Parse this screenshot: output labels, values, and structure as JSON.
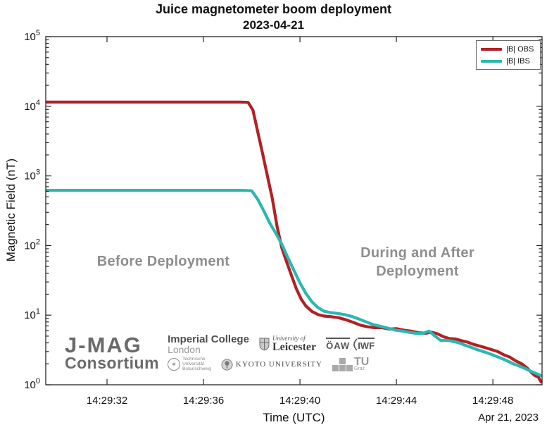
{
  "title": {
    "line1": "Juice magnetometer boom deployment",
    "line2": "2023-04-21"
  },
  "axes": {
    "ylabel": "Magnetic Field (nT)",
    "xlabel": "Time (UTC)",
    "date_label": "Apr 21, 2023"
  },
  "legend": [
    {
      "label": "|B| OBS",
      "color": "#b22025"
    },
    {
      "label": "|B| IBS",
      "color": "#2ab8b0"
    }
  ],
  "annotations": {
    "before": "Before Deployment",
    "during_line1": "During and After",
    "during_line2": "Deployment"
  },
  "logos": {
    "jmag_line1": "J-MAG",
    "jmag_line2": "Consortium",
    "imperial_line1": "Imperial College",
    "imperial_line2": "London",
    "leicester_line1": "University of",
    "leicester_line2": "Leicester",
    "oaw": "ÖAW",
    "iwf": "IWF",
    "tubs_line1": "Technische",
    "tubs_line2": "Universität",
    "tubs_line3": "Braunschweig",
    "kyoto": "KYOTO UNIVERSITY",
    "tugraz_line1": "TU",
    "tugraz_line2": "Graz"
  },
  "chart_data": {
    "type": "line",
    "title": "Juice magnetometer boom deployment",
    "subtitle": "2023-04-21",
    "xlabel": "Time (UTC)",
    "ylabel": "Magnetic Field (nT)",
    "x_unit": "seconds after 14:29:00 UTC",
    "x_range": [
      29.46,
      50.04
    ],
    "x_ticks": [
      {
        "t": 32,
        "label": "14:29:32"
      },
      {
        "t": 36,
        "label": "14:29:36"
      },
      {
        "t": 40,
        "label": "14:29:40"
      },
      {
        "t": 44,
        "label": "14:29:44"
      },
      {
        "t": 48,
        "label": "14:29:48"
      }
    ],
    "y_scale": "log",
    "y_range_exp": [
      0,
      5
    ],
    "grid": false,
    "legend_position": "top-right",
    "series": [
      {
        "name": "|B| OBS",
        "color": "#b22025",
        "points": [
          [
            29.46,
            11500
          ],
          [
            31,
            11500
          ],
          [
            32.5,
            11500
          ],
          [
            34,
            11500
          ],
          [
            35.5,
            11500
          ],
          [
            36.8,
            11500
          ],
          [
            37.5,
            11500
          ],
          [
            37.85,
            11400
          ],
          [
            38.05,
            8800
          ],
          [
            38.25,
            4300
          ],
          [
            38.45,
            2100
          ],
          [
            38.65,
            1000
          ],
          [
            38.85,
            480
          ],
          [
            39.05,
            190
          ],
          [
            39.25,
            92
          ],
          [
            39.45,
            58
          ],
          [
            39.65,
            37
          ],
          [
            39.85,
            24
          ],
          [
            40.05,
            17
          ],
          [
            40.25,
            13.5
          ],
          [
            40.5,
            11.3
          ],
          [
            40.75,
            10.2
          ],
          [
            41.0,
            9.7
          ],
          [
            41.3,
            9.5
          ],
          [
            41.6,
            9.2
          ],
          [
            41.9,
            8.6
          ],
          [
            42.2,
            7.9
          ],
          [
            42.5,
            7.2
          ],
          [
            42.8,
            6.8
          ],
          [
            43.1,
            6.6
          ],
          [
            43.4,
            6.6
          ],
          [
            43.7,
            6.3
          ],
          [
            44.0,
            6.4
          ],
          [
            44.3,
            6.1
          ],
          [
            44.6,
            5.9
          ],
          [
            44.9,
            5.6
          ],
          [
            45.2,
            5.5
          ],
          [
            45.45,
            5.7
          ],
          [
            45.7,
            5.4
          ],
          [
            45.95,
            4.9
          ],
          [
            46.2,
            4.6
          ],
          [
            46.45,
            4.55
          ],
          [
            46.7,
            4.3
          ],
          [
            46.95,
            4.1
          ],
          [
            47.2,
            3.8
          ],
          [
            47.45,
            3.6
          ],
          [
            47.7,
            3.4
          ],
          [
            47.95,
            3.2
          ],
          [
            48.2,
            3.0
          ],
          [
            48.45,
            2.7
          ],
          [
            48.7,
            2.5
          ],
          [
            48.95,
            2.2
          ],
          [
            49.2,
            2.0
          ],
          [
            49.45,
            1.7
          ],
          [
            49.6,
            1.5
          ],
          [
            49.75,
            1.35
          ],
          [
            49.88,
            1.3
          ],
          [
            50.0,
            1.1
          ]
        ]
      },
      {
        "name": "|B| IBS",
        "color": "#2ab8b0",
        "points": [
          [
            29.46,
            620
          ],
          [
            31,
            620
          ],
          [
            32.5,
            620
          ],
          [
            34,
            620
          ],
          [
            35.5,
            620
          ],
          [
            36.8,
            620
          ],
          [
            37.6,
            620
          ],
          [
            38.0,
            612
          ],
          [
            38.25,
            460
          ],
          [
            38.5,
            315
          ],
          [
            38.75,
            210
          ],
          [
            39.0,
            150
          ],
          [
            39.25,
            104
          ],
          [
            39.5,
            67
          ],
          [
            39.75,
            44
          ],
          [
            40.0,
            29
          ],
          [
            40.25,
            20.5
          ],
          [
            40.5,
            15.5
          ],
          [
            40.75,
            12.8
          ],
          [
            41.0,
            11.4
          ],
          [
            41.25,
            10.9
          ],
          [
            41.55,
            10.6
          ],
          [
            41.85,
            10.2
          ],
          [
            42.15,
            9.6
          ],
          [
            42.45,
            8.8
          ],
          [
            42.75,
            8.0
          ],
          [
            43.05,
            7.3
          ],
          [
            43.35,
            6.9
          ],
          [
            43.65,
            6.5
          ],
          [
            43.95,
            6.1
          ],
          [
            44.25,
            5.9
          ],
          [
            44.55,
            5.65
          ],
          [
            44.85,
            5.45
          ],
          [
            45.1,
            5.5
          ],
          [
            45.35,
            5.9
          ],
          [
            45.6,
            5.0
          ],
          [
            45.85,
            4.3
          ],
          [
            46.1,
            4.35
          ],
          [
            46.35,
            4.2
          ],
          [
            46.6,
            4.0
          ],
          [
            46.85,
            3.7
          ],
          [
            47.1,
            3.45
          ],
          [
            47.35,
            3.2
          ],
          [
            47.6,
            3.0
          ],
          [
            47.85,
            2.8
          ],
          [
            48.1,
            2.6
          ],
          [
            48.35,
            2.4
          ],
          [
            48.6,
            2.2
          ],
          [
            48.85,
            2.0
          ],
          [
            49.1,
            1.85
          ],
          [
            49.35,
            1.7
          ],
          [
            49.6,
            1.55
          ],
          [
            49.8,
            1.45
          ],
          [
            50.0,
            1.35
          ]
        ]
      }
    ]
  }
}
